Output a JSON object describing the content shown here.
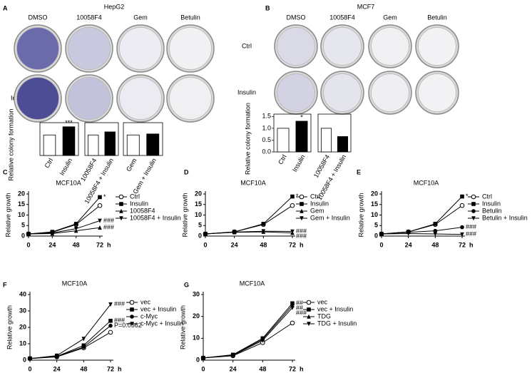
{
  "plates": [
    {
      "panel": "A",
      "title": "HepG2",
      "columns": [
        "DMSO",
        "10058F4",
        "Gem",
        "Betulin"
      ],
      "rows": [
        "Ctrl",
        "Insulin"
      ]
    },
    {
      "panel": "B",
      "title": "MCF7",
      "columns": [
        "DMSO",
        "10058F4",
        "Gem",
        "Betulin"
      ],
      "rows": [
        "Ctrl",
        "Insulin"
      ]
    }
  ],
  "chart_data": [
    {
      "type": "bar",
      "ylabel": "Relative colony formation",
      "categories": [
        "Ctrl",
        "Insulin"
      ],
      "values": [
        1,
        1.4
      ],
      "colors": [
        "#ffffff",
        "#000000"
      ],
      "ylim": [
        0,
        1.6
      ],
      "annotations": [
        "***"
      ]
    },
    {
      "type": "bar",
      "categories": [
        "10058F4",
        "10058F4 + Insulin"
      ],
      "values": [
        1,
        1.15
      ],
      "colors": [
        "#ffffff",
        "#000000"
      ],
      "ylim": [
        0,
        1.6
      ]
    },
    {
      "type": "bar",
      "categories": [
        "Gem",
        "Gem + Insulin"
      ],
      "values": [
        1,
        1.05
      ],
      "colors": [
        "#ffffff",
        "#000000"
      ],
      "ylim": [
        0,
        1.6
      ]
    },
    {
      "type": "bar",
      "ylabel": "Relative colony formation",
      "categories": [
        "Ctrl",
        "Insulin"
      ],
      "values": [
        1,
        1.3
      ],
      "colors": [
        "#ffffff",
        "#000000"
      ],
      "ylim": [
        0,
        1.6
      ],
      "yticks": [
        {
          "value": 0,
          "label": "0.0"
        },
        0.5,
        {
          "value": 1,
          "label": "1.0"
        },
        1.5
      ],
      "annotations": [
        "*"
      ]
    },
    {
      "type": "bar",
      "categories": [
        "10058F4",
        "10058F4 + Insulin"
      ],
      "values": [
        1,
        0.65
      ],
      "colors": [
        "#ffffff",
        "#000000"
      ],
      "ylim": [
        0,
        1.6
      ]
    },
    {
      "type": "line",
      "panel": "C",
      "title": "MCF10A",
      "ylabel": "Relative growth",
      "xlabel": "h",
      "x": [
        0,
        24,
        48,
        72
      ],
      "xlim": [
        0,
        72
      ],
      "xticks": [
        0,
        24,
        48,
        72
      ],
      "ylim": [
        0,
        20
      ],
      "yticks": [
        0,
        5,
        10,
        15,
        20
      ],
      "series": [
        {
          "name": "Ctrl",
          "color": "#000000",
          "marker": "circle-open",
          "values": [
            1,
            1.8,
            5.5,
            14.5
          ]
        },
        {
          "name": "Insulin",
          "color": "#000000",
          "marker": "square",
          "values": [
            1,
            2,
            5.8,
            18.5
          ]
        },
        {
          "name": "10058F4",
          "color": "#000000",
          "marker": "triangle-up",
          "values": [
            1,
            1.2,
            2.5,
            4
          ]
        },
        {
          "name": "10058F4 + Insulin",
          "color": "#000000",
          "marker": "triangle-down",
          "values": [
            1,
            1.5,
            3.5,
            7.3
          ]
        }
      ],
      "annotations": [
        "*",
        "###",
        "###"
      ]
    },
    {
      "type": "line",
      "panel": "D",
      "title": "MCF10A",
      "ylabel": "Relative growth",
      "xlabel": "h",
      "x": [
        0,
        24,
        48,
        72
      ],
      "xlim": [
        0,
        72
      ],
      "xticks": [
        0,
        24,
        48,
        72
      ],
      "ylim": [
        0,
        20
      ],
      "yticks": [
        0,
        5,
        10,
        15,
        20
      ],
      "series": [
        {
          "name": "Ctrl",
          "color": "#000000",
          "marker": "circle-open",
          "values": [
            1,
            2,
            5.5,
            14.5
          ]
        },
        {
          "name": "Insulin",
          "color": "#000000",
          "marker": "square",
          "values": [
            1,
            2,
            5.8,
            18.8
          ]
        },
        {
          "name": "Gem",
          "color": "#000000",
          "marker": "triangle-up",
          "values": [
            1,
            1.8,
            2,
            1.5
          ]
        },
        {
          "name": "Gem + Insulin",
          "color": "#000000",
          "marker": "triangle-down",
          "values": [
            1,
            1.9,
            2.3,
            2.2
          ]
        }
      ],
      "annotations": [
        "*",
        "###",
        "###"
      ]
    },
    {
      "type": "line",
      "panel": "E",
      "title": "MCF10A",
      "ylabel": "Relative growth",
      "xlabel": "h",
      "x": [
        0,
        24,
        48,
        72
      ],
      "xlim": [
        0,
        72
      ],
      "xticks": [
        0,
        24,
        48,
        72
      ],
      "ylim": [
        0,
        20
      ],
      "yticks": [
        0,
        5,
        10,
        15,
        20
      ],
      "series": [
        {
          "name": "Ctrl",
          "color": "#000000",
          "marker": "circle-open",
          "values": [
            1,
            2,
            5.5,
            14.5
          ]
        },
        {
          "name": "Insulin",
          "color": "#000000",
          "marker": "square",
          "values": [
            1,
            2,
            5.8,
            18.8
          ]
        },
        {
          "name": "Betulin",
          "color": "#000000",
          "marker": "circle",
          "values": [
            1,
            1.8,
            2.5,
            4.2
          ]
        },
        {
          "name": "Betulin + Insulin",
          "color": "#000000",
          "marker": "triangle-down",
          "values": [
            1,
            1.2,
            1,
            0.8
          ]
        }
      ],
      "annotations": [
        "*",
        "###",
        "###"
      ]
    },
    {
      "type": "line",
      "panel": "F",
      "title": "MCF10A",
      "ylabel": "Relative growth",
      "xlabel": "h",
      "x": [
        0,
        24,
        48,
        72
      ],
      "xlim": [
        0,
        72
      ],
      "xticks": [
        0,
        24,
        48,
        72
      ],
      "ylim": [
        0,
        40
      ],
      "yticks": [
        0,
        10,
        20,
        30,
        40
      ],
      "series": [
        {
          "name": "vec",
          "color": "#000000",
          "marker": "circle-open",
          "values": [
            1,
            2,
            7.5,
            17
          ]
        },
        {
          "name": "vec + Insulin",
          "color": "#000000",
          "marker": "square",
          "values": [
            1,
            2.3,
            9,
            24
          ]
        },
        {
          "name": "c-Myc",
          "color": "#000000",
          "marker": "circle",
          "values": [
            1,
            2.2,
            8,
            21
          ]
        },
        {
          "name": "c-Myc + Insulin",
          "color": "#000000",
          "marker": "triangle-down",
          "values": [
            1,
            2.8,
            13,
            34
          ]
        }
      ],
      "annotations": [
        "###",
        "###",
        "P=0.0562"
      ]
    },
    {
      "type": "line",
      "panel": "G",
      "title": "MCF10A",
      "ylabel": "Relative growth",
      "xlabel": "h",
      "x": [
        0,
        24,
        48,
        72
      ],
      "xlim": [
        0,
        72
      ],
      "xticks": [
        0,
        24,
        48,
        72
      ],
      "ylim": [
        0,
        30
      ],
      "yticks": [
        0,
        10,
        20,
        30
      ],
      "series": [
        {
          "name": "vec",
          "color": "#000000",
          "marker": "circle-open",
          "values": [
            1,
            2,
            8,
            17
          ]
        },
        {
          "name": "vec + Insulin",
          "color": "#000000",
          "marker": "square",
          "values": [
            1,
            2.5,
            10,
            26
          ]
        },
        {
          "name": "TDG",
          "color": "#000000",
          "marker": "triangle-up",
          "values": [
            1,
            2.3,
            9.5,
            25
          ]
        },
        {
          "name": "TDG + Insulin",
          "color": "#000000",
          "marker": "triangle-down",
          "values": [
            1,
            2.2,
            9,
            24
          ]
        }
      ],
      "annotations": [
        "##",
        "##",
        "###"
      ]
    }
  ]
}
